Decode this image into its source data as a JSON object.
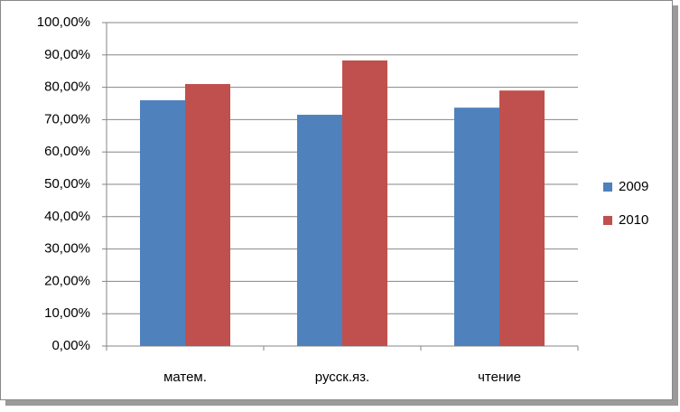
{
  "chart_data": {
    "type": "bar",
    "categories": [
      "матем.",
      "русск.яз.",
      "чтение"
    ],
    "series": [
      {
        "name": "2009",
        "color": "#4f81bd",
        "values": [
          76.0,
          71.5,
          73.7
        ]
      },
      {
        "name": "2010",
        "color": "#c0504d",
        "values": [
          81.0,
          88.3,
          79.0
        ]
      }
    ],
    "ylim": [
      0,
      100
    ],
    "yticks": [
      {
        "value": 0,
        "label": "0,00%"
      },
      {
        "value": 10,
        "label": "10,00%"
      },
      {
        "value": 20,
        "label": "20,00%"
      },
      {
        "value": 30,
        "label": "30,00%"
      },
      {
        "value": 40,
        "label": "40,00%"
      },
      {
        "value": 50,
        "label": "50,00%"
      },
      {
        "value": 60,
        "label": "60,00%"
      },
      {
        "value": 70,
        "label": "70,00%"
      },
      {
        "value": 80,
        "label": "80,00%"
      },
      {
        "value": 90,
        "label": "90,00%"
      },
      {
        "value": 100,
        "label": "100,00%"
      }
    ],
    "grid": true,
    "legend": "right"
  }
}
